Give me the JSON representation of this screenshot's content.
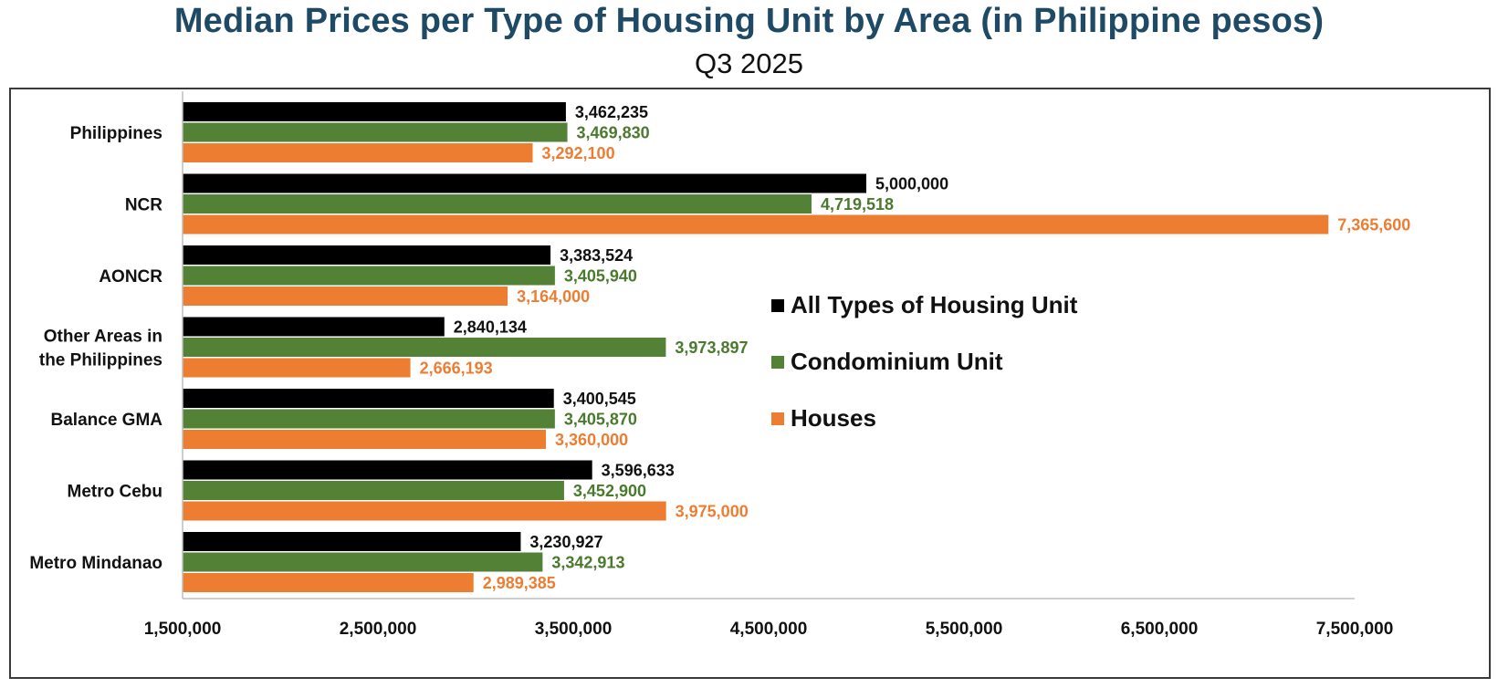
{
  "title": "Median Prices per Type of Housing Unit by Area (in Philippine pesos)",
  "subtitle": "Q3 2025",
  "chart_data": {
    "type": "bar",
    "orientation": "horizontal",
    "categories": [
      "Philippines",
      "NCR",
      "AONCR",
      "Other Areas in the Philippines",
      "Balance GMA",
      "Metro Cebu",
      "Metro Mindanao"
    ],
    "category_lines": [
      [
        "Philippines"
      ],
      [
        "NCR"
      ],
      [
        "AONCR"
      ],
      [
        "Other Areas in",
        "the Philippines"
      ],
      [
        "Balance GMA"
      ],
      [
        "Metro Cebu"
      ],
      [
        "Metro Mindanao"
      ]
    ],
    "series": [
      {
        "name": "All Types of Housing Unit",
        "color": "#000000",
        "label_color": "#111111",
        "values": [
          3462235,
          5000000,
          3383524,
          2840134,
          3400545,
          3596633,
          3230927
        ],
        "labels": [
          "3,462,235",
          "5,000,000",
          "3,383,524",
          "2,840,134",
          "3,400,545",
          "3,596,633",
          "3,230,927"
        ]
      },
      {
        "name": "Condominium Unit",
        "color": "#538135",
        "label_color": "#4a7a2e",
        "values": [
          3469830,
          4719518,
          3405940,
          3973897,
          3405870,
          3452900,
          3342913
        ],
        "labels": [
          "3,469,830",
          "4,719,518",
          "3,405,940",
          "3,973,897",
          "3,405,870",
          "3,452,900",
          "3,342,913"
        ]
      },
      {
        "name": "Houses",
        "color": "#ed7d31",
        "label_color": "#ed7d31",
        "values": [
          3292100,
          7365600,
          3164000,
          2666193,
          3360000,
          3975000,
          2989385
        ],
        "labels": [
          "3,292,100",
          "7,365,600",
          "3,164,000",
          "2,666,193",
          "3,360,000",
          "3,975,000",
          "2,989,385"
        ]
      }
    ],
    "xlim": [
      1500000,
      7500000
    ],
    "x_ticks": [
      1500000,
      2500000,
      3500000,
      4500000,
      5500000,
      6500000,
      7500000
    ],
    "x_tick_labels": [
      "1,500,000",
      "2,500,000",
      "3,500,000",
      "4,500,000",
      "5,500,000",
      "6,500,000",
      "7,500,000"
    ],
    "grid": false,
    "legend_position": "center-right"
  }
}
